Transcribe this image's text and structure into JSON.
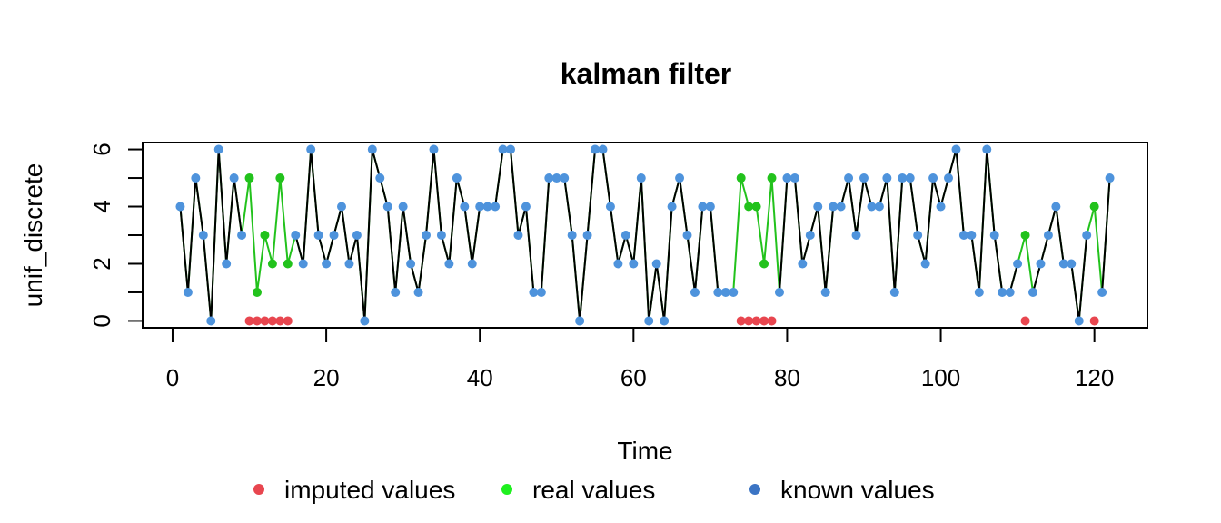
{
  "chart_data": {
    "type": "line",
    "title": "kalman filter",
    "xlabel": "Time",
    "ylabel": "unif_discrete",
    "xlim": [
      -3.9,
      126.9
    ],
    "ylim": [
      -0.24,
      6.24
    ],
    "x_ticks": [
      0,
      20,
      40,
      60,
      80,
      100,
      120
    ],
    "y_ticks": [
      0,
      2,
      4,
      6
    ],
    "y_minor_ticks": [
      1,
      3,
      5
    ],
    "grid": false,
    "legend_position": "bottom",
    "colors": {
      "known": "#4e93dc",
      "imputed": "#e8464f",
      "real": "#22c21c",
      "real_legend": "#1ff01f",
      "known_legend": "#3b74c4",
      "series_line": "#000000",
      "real_line": "#22c21c"
    },
    "legend": [
      {
        "label": "imputed values",
        "color_key": "imputed"
      },
      {
        "label": "real values",
        "color_key": "real_legend"
      },
      {
        "label": "known values",
        "color_key": "known_legend"
      }
    ],
    "series": [
      {
        "name": "known values",
        "x": [
          1,
          2,
          3,
          4,
          5,
          6,
          7,
          8,
          9,
          10,
          11,
          12,
          13,
          14,
          15,
          16,
          17,
          18,
          19,
          20,
          21,
          22,
          23,
          24,
          25,
          26,
          27,
          28,
          29,
          30,
          31,
          32,
          33,
          34,
          35,
          36,
          37,
          38,
          39,
          40,
          41,
          42,
          43,
          44,
          45,
          46,
          47,
          48,
          49,
          50,
          51,
          52,
          53,
          54,
          55,
          56,
          57,
          58,
          59,
          60,
          61,
          62,
          63,
          64,
          65,
          66,
          67,
          68,
          69,
          70,
          71,
          72,
          73,
          74,
          75,
          76,
          77,
          78,
          79,
          80,
          81,
          82,
          83,
          84,
          85,
          86,
          87,
          88,
          89,
          90,
          91,
          92,
          93,
          94,
          95,
          96,
          97,
          98,
          99,
          100,
          101,
          102,
          103,
          104,
          105,
          106,
          107,
          108,
          109,
          110,
          111,
          112,
          113,
          114,
          115,
          116,
          117,
          118,
          119,
          120,
          121,
          122
        ],
        "y": [
          4,
          1,
          5,
          3,
          0,
          6,
          2,
          5,
          3,
          null,
          null,
          null,
          null,
          null,
          null,
          3,
          2,
          6,
          3,
          2,
          3,
          4,
          2,
          3,
          0,
          6,
          5,
          4,
          1,
          4,
          2,
          1,
          3,
          6,
          3,
          2,
          5,
          4,
          2,
          4,
          4,
          4,
          6,
          6,
          3,
          4,
          1,
          1,
          5,
          5,
          5,
          3,
          0,
          3,
          6,
          6,
          4,
          2,
          3,
          2,
          5,
          0,
          2,
          0,
          4,
          5,
          3,
          1,
          4,
          4,
          1,
          1,
          1,
          null,
          null,
          null,
          null,
          null,
          1,
          5,
          5,
          2,
          3,
          4,
          1,
          4,
          4,
          5,
          3,
          5,
          4,
          4,
          5,
          1,
          5,
          5,
          3,
          2,
          5,
          4,
          5,
          6,
          3,
          3,
          1,
          6,
          3,
          1,
          1,
          2,
          null,
          1,
          2,
          3,
          4,
          2,
          2,
          0,
          3,
          null,
          1,
          5
        ]
      },
      {
        "name": "real values",
        "x": [
          10,
          11,
          12,
          13,
          14,
          15,
          74,
          75,
          76,
          77,
          78,
          111,
          120
        ],
        "y": [
          5,
          1,
          3,
          2,
          5,
          2,
          5,
          4,
          4,
          2,
          5,
          3,
          4
        ]
      },
      {
        "name": "imputed values",
        "x": [
          10,
          11,
          12,
          13,
          14,
          15,
          74,
          75,
          76,
          77,
          78,
          111,
          120
        ],
        "y": [
          0,
          0,
          0,
          0,
          0,
          0,
          0,
          0,
          0,
          0,
          0,
          0,
          0
        ]
      }
    ]
  }
}
